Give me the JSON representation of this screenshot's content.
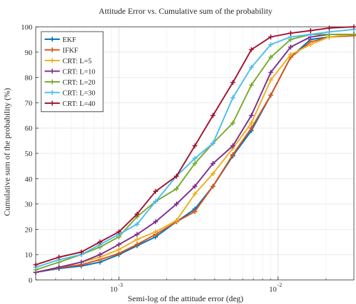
{
  "chart_data": {
    "type": "line",
    "title": "Attitude Error vs. Cumulative sum of the probability",
    "xlabel": "Semi-log of the attitude error (deg)",
    "ylabel": "Cumulative sum of the probability (%)",
    "xscale": "log",
    "xlim": [
      0.0003,
      0.03
    ],
    "ylim": [
      0,
      100
    ],
    "xticks": [
      0.001,
      0.01
    ],
    "xtick_labels": [
      {
        "base": "10",
        "exp": "-3"
      },
      {
        "base": "10",
        "exp": "-2"
      }
    ],
    "yticks": [
      0,
      10,
      20,
      30,
      40,
      50,
      60,
      70,
      80,
      90,
      100
    ],
    "grid": true,
    "legend_position": "top-left",
    "x": [
      0.0003,
      0.00042,
      0.00058,
      0.00076,
      0.001,
      0.0013,
      0.0017,
      0.0023,
      0.003,
      0.0039,
      0.0052,
      0.0068,
      0.009,
      0.012,
      0.016,
      0.021,
      0.03
    ],
    "series": [
      {
        "name": "EKF",
        "color": "#0072BD",
        "values": [
          3,
          4.5,
          5.5,
          7,
          10,
          13.5,
          17,
          23,
          28,
          37,
          49,
          59,
          73,
          88,
          95,
          96,
          97
        ]
      },
      {
        "name": "IFKF",
        "color": "#D95319",
        "values": [
          3,
          4.8,
          6,
          8,
          10.5,
          14,
          18,
          23,
          27,
          37,
          49.5,
          60,
          73,
          88,
          94,
          96,
          96.5
        ]
      },
      {
        "name": "CRT: L=5",
        "color": "#EDB120",
        "values": [
          3,
          5,
          7,
          9,
          12,
          16,
          19,
          23.5,
          34,
          42,
          52,
          62,
          79,
          89,
          93,
          96,
          97
        ]
      },
      {
        "name": "CRT: L=10",
        "color": "#7E2F8E",
        "values": [
          3,
          5,
          7,
          10,
          14,
          18,
          23,
          30,
          37,
          46,
          53,
          65,
          82,
          92,
          96,
          97,
          97
        ]
      },
      {
        "name": "CRT: L=20",
        "color": "#77AC30",
        "values": [
          4,
          7,
          10,
          13,
          17,
          25,
          31,
          36,
          46,
          54,
          62,
          77,
          88,
          95,
          97,
          97,
          97
        ]
      },
      {
        "name": "CRT: L=30",
        "color": "#4DBEEE",
        "values": [
          5,
          8,
          10,
          14,
          18,
          22,
          31,
          41,
          48,
          54,
          72,
          84,
          93,
          96,
          97,
          98,
          99
        ]
      },
      {
        "name": "CRT: L=40",
        "color": "#A2142F",
        "values": [
          6,
          9,
          11,
          15,
          19,
          26,
          35,
          41,
          53,
          65,
          78,
          91,
          96,
          97.5,
          98.5,
          99.5,
          100
        ]
      }
    ]
  }
}
